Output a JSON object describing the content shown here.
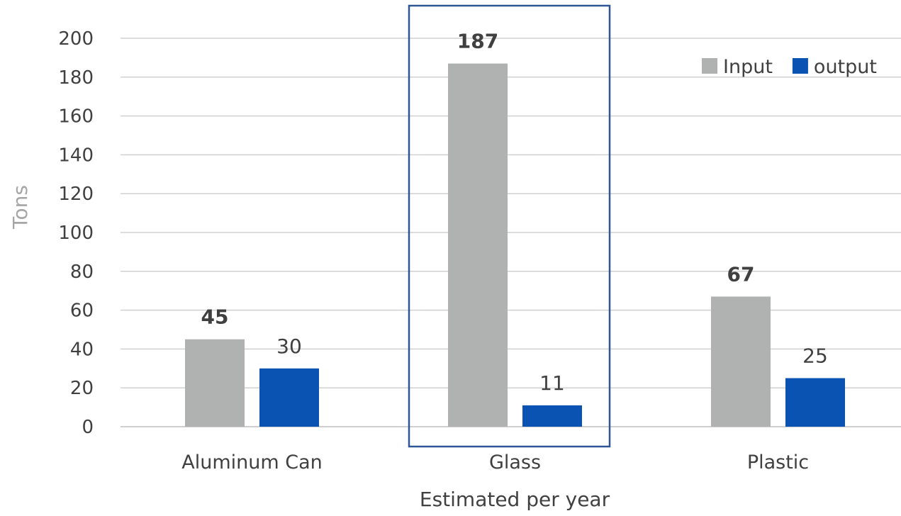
{
  "chart_data": {
    "type": "bar",
    "title": "",
    "categories": [
      "Aluminum Can",
      "Glass",
      "Plastic"
    ],
    "series": [
      {
        "name": "Input",
        "values": [
          45,
          187,
          67
        ],
        "color": "#B0B2B1",
        "label_weight": "bold"
      },
      {
        "name": "output",
        "values": [
          30,
          11,
          25
        ],
        "color": "#0B53B3",
        "label_weight": "normal"
      }
    ],
    "xlabel": "Estimated per year",
    "ylabel": "Tons",
    "ylim": [
      0,
      200
    ],
    "yticks": [
      0,
      20,
      40,
      60,
      80,
      100,
      120,
      140,
      160,
      180,
      200
    ],
    "grid": true,
    "legend_position": "top-right",
    "highlighted_category": "Glass",
    "colors": {
      "gridline": "#D0D0D0",
      "highlight_box": "#2F5597",
      "ylabel": "#A6A6A6",
      "xlabel": "#404040"
    }
  }
}
